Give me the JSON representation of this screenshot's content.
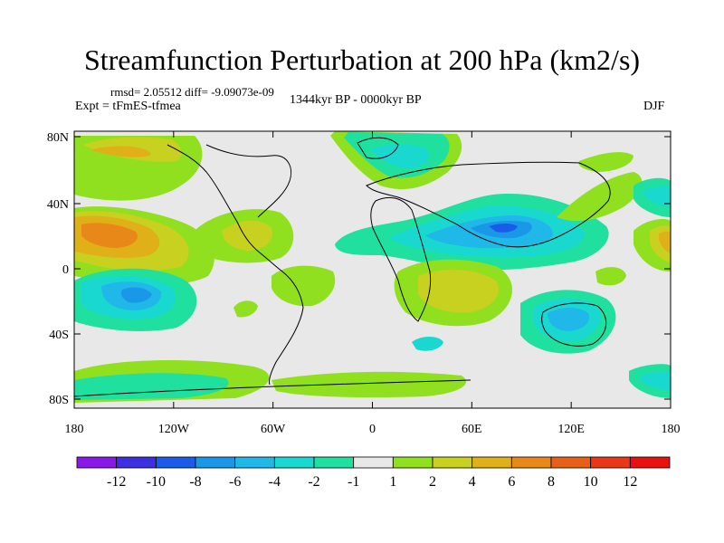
{
  "title": "Streamfunction Perturbation at 200 hPa (km2/s)",
  "stats_line": "rmsd= 2.05512 diff= -9.09073e-09",
  "experiment_line": "Expt = tFmES-tfmea",
  "period_line": "1344kyr BP - 0000kyr BP",
  "season": "DJF",
  "lat_ticks": [
    "80N",
    "40N",
    "0",
    "40S",
    "80S"
  ],
  "lon_ticks": [
    "180",
    "120W",
    "60W",
    "0",
    "60E",
    "120E",
    "180"
  ],
  "colorbar": {
    "labels": [
      "-12",
      "-10",
      "-8",
      "-6",
      "-4",
      "-2",
      "-1",
      "1",
      "2",
      "4",
      "6",
      "8",
      "10",
      "12"
    ],
    "colors": [
      "#8a18e8",
      "#3c30e0",
      "#1a5ce8",
      "#1a98e8",
      "#20b8e8",
      "#18d8d0",
      "#20e0a0",
      "#e8e8e8",
      "#90e020",
      "#c8d020",
      "#e0b018",
      "#e88818",
      "#e86018",
      "#e83818",
      "#e81010"
    ]
  }
}
